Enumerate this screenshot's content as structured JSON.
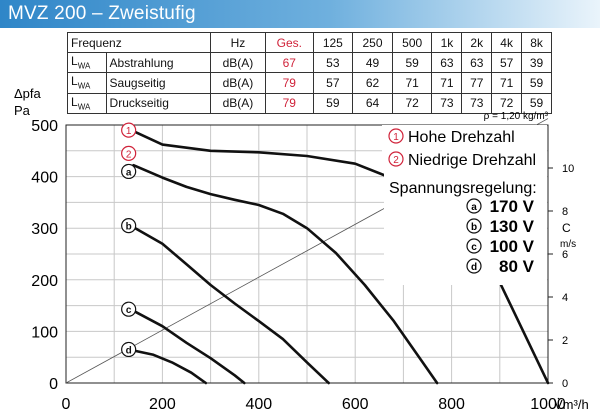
{
  "header": {
    "title": "MVZ 200 – Zweistufig"
  },
  "table": {
    "columns": [
      "Frequenz",
      "Hz",
      "Ges.",
      "125",
      "250",
      "500",
      "1k",
      "2k",
      "4k",
      "8k"
    ],
    "rows": [
      {
        "symbol": "L",
        "sub": "WA",
        "label": "Abstrahlung",
        "unit": "dB(A)",
        "total": "67",
        "values": [
          "53",
          "49",
          "59",
          "63",
          "63",
          "57",
          "39"
        ]
      },
      {
        "symbol": "L",
        "sub": "WA",
        "label": "Saugseitig",
        "unit": "dB(A)",
        "total": "79",
        "values": [
          "57",
          "62",
          "71",
          "71",
          "77",
          "71",
          "59"
        ]
      },
      {
        "symbol": "L",
        "sub": "WA",
        "label": "Druckseitig",
        "unit": "dB(A)",
        "total": "79",
        "values": [
          "59",
          "64",
          "72",
          "73",
          "73",
          "72",
          "59"
        ]
      }
    ]
  },
  "density_note": "ρ = 1,20 kg/m³",
  "colors": {
    "accent_red": "#d0233a",
    "title_bar": "#2f86c8"
  },
  "chart_data": {
    "type": "line",
    "ylabel": "Δpfa",
    "ylabel_unit": "Pa",
    "xlabel": "V̇m³/h",
    "xlim": [
      0,
      1000
    ],
    "ylim": [
      0,
      500
    ],
    "xticks": [
      "0",
      "200",
      "400",
      "600",
      "800",
      "1000"
    ],
    "yticks": [
      "0",
      "100",
      "200",
      "300",
      "400",
      "500"
    ],
    "right_axis": {
      "label": "C",
      "unit": "m/s",
      "ticks": [
        "0",
        "2",
        "4",
        "6",
        "8",
        "10"
      ],
      "range": [
        0,
        12
      ]
    },
    "grid": true,
    "legend": {
      "curves": [
        {
          "marker": "1",
          "text": "Hohe Drehzahl"
        },
        {
          "marker": "2",
          "text": "Niedrige Drehzahl"
        }
      ],
      "regulation_title": "Spannungsregelung:",
      "voltages": [
        {
          "marker": "a",
          "text": "170 V"
        },
        {
          "marker": "b",
          "text": "130 V"
        },
        {
          "marker": "c",
          "text": "100 V"
        },
        {
          "marker": "d",
          "text": "80 V"
        }
      ]
    },
    "series": [
      {
        "marker": "1",
        "x": [
          140,
          200,
          300,
          400,
          500,
          600,
          700,
          800,
          900,
          1000
        ],
        "y": [
          488,
          462,
          450,
          447,
          440,
          425,
          388,
          318,
          195,
          0
        ]
      },
      {
        "marker": "a",
        "x": [
          140,
          200,
          250,
          300,
          350,
          400,
          450,
          500,
          560,
          620,
          680,
          740,
          770
        ],
        "y": [
          422,
          398,
          380,
          366,
          355,
          345,
          328,
          300,
          252,
          190,
          120,
          40,
          0
        ]
      },
      {
        "marker": "b",
        "x": [
          140,
          200,
          250,
          300,
          350,
          400,
          450,
          500,
          545
        ],
        "y": [
          302,
          270,
          230,
          190,
          154,
          120,
          85,
          40,
          0
        ]
      },
      {
        "marker": "c",
        "x": [
          140,
          200,
          250,
          300,
          350,
          370
        ],
        "y": [
          140,
          110,
          78,
          48,
          15,
          0
        ]
      },
      {
        "marker": "d",
        "x": [
          140,
          180,
          220,
          260,
          290
        ],
        "y": [
          63,
          55,
          40,
          20,
          0
        ]
      }
    ],
    "curve_markers": [
      {
        "marker": "1",
        "x": 130,
        "y": 490
      },
      {
        "marker": "2",
        "x": 130,
        "y": 445
      },
      {
        "marker": "a",
        "x": 130,
        "y": 410
      },
      {
        "marker": "b",
        "x": 130,
        "y": 305
      },
      {
        "marker": "c",
        "x": 130,
        "y": 143
      },
      {
        "marker": "d",
        "x": 130,
        "y": 65
      }
    ],
    "velocity_line": {
      "x": [
        0,
        1000
      ],
      "c": [
        0,
        12.3
      ]
    }
  }
}
